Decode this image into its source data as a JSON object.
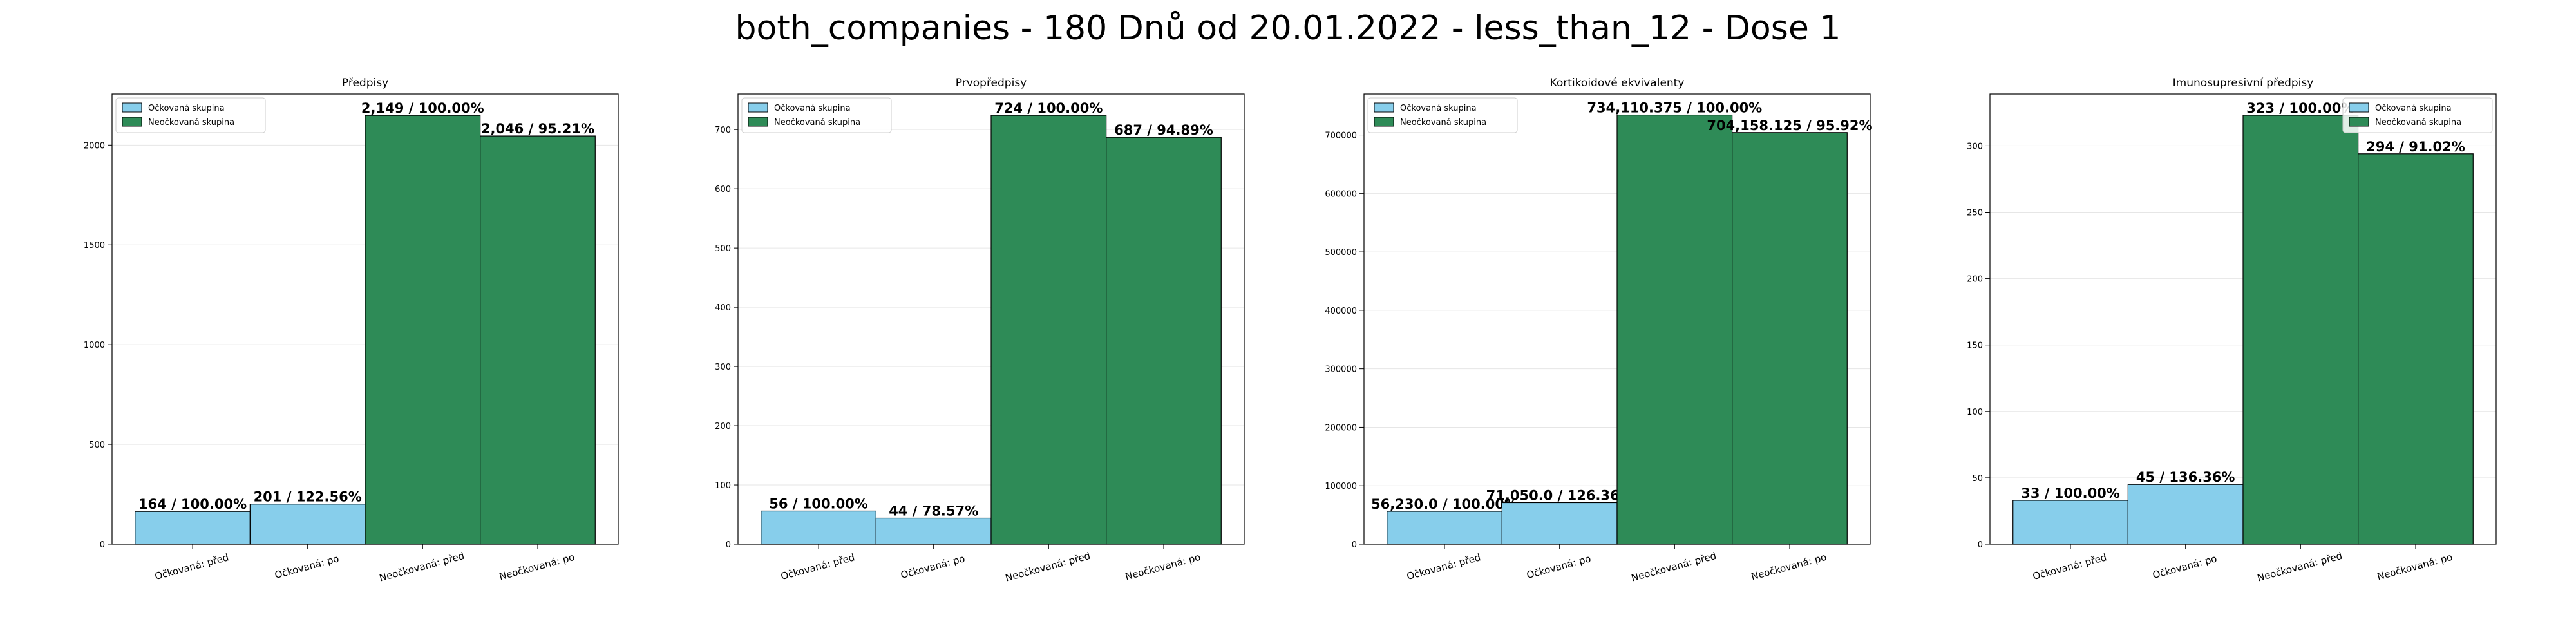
{
  "figure_title": "both_companies - 180 Dnů od 20.01.2022 - less_than_12 - Dose 1",
  "colors": {
    "vaccinated": "#87CEEB",
    "unvaccinated": "#2E8B57",
    "edge": "#000000",
    "grid": "#e6e6e6"
  },
  "chart_data": [
    {
      "type": "bar",
      "title": "Předpisy",
      "categories": [
        "Očkovaná: před",
        "Očkovaná: po",
        "Neočkovaná: před",
        "Neočkovaná: po"
      ],
      "values": [
        164,
        201,
        2149,
        2046
      ],
      "bar_labels": [
        "164 / 100.00%",
        "201 / 122.56%",
        "2,149 / 100.00%",
        "2,046 / 95.21%"
      ],
      "series_of_bar": [
        0,
        0,
        1,
        1
      ],
      "ylim": [
        0,
        2256
      ],
      "yticks": [
        0,
        500,
        1000,
        1500,
        2000
      ],
      "legend": [
        "Očkovaná skupina",
        "Neočkovaná skupina"
      ],
      "legend_position": "top-left",
      "grid": true
    },
    {
      "type": "bar",
      "title": "Prvopředpisy",
      "categories": [
        "Očkovaná: před",
        "Očkovaná: po",
        "Neočkovaná: před",
        "Neočkovaná: po"
      ],
      "values": [
        56,
        44,
        724,
        687
      ],
      "bar_labels": [
        "56 / 100.00%",
        "44 / 78.57%",
        "724 / 100.00%",
        "687 / 94.89%"
      ],
      "series_of_bar": [
        0,
        0,
        1,
        1
      ],
      "ylim": [
        0,
        760
      ],
      "yticks": [
        0,
        100,
        200,
        300,
        400,
        500,
        600,
        700
      ],
      "legend": [
        "Očkovaná skupina",
        "Neočkovaná skupina"
      ],
      "legend_position": "top-left",
      "grid": true
    },
    {
      "type": "bar",
      "title": "Kortikoidové ekvivalenty",
      "categories": [
        "Očkovaná: před",
        "Očkovaná: po",
        "Neočkovaná: před",
        "Neočkovaná: po"
      ],
      "values": [
        56230.0,
        71050.0,
        734110.375,
        704158.125
      ],
      "bar_labels": [
        "56,230.0 / 100.00%",
        "71,050.0 / 126.36%",
        "734,110.375 / 100.00%",
        "704,158.125 / 95.92%"
      ],
      "series_of_bar": [
        0,
        0,
        1,
        1
      ],
      "ylim": [
        0,
        770000
      ],
      "yticks": [
        0,
        100000,
        200000,
        300000,
        400000,
        500000,
        600000,
        700000
      ],
      "legend": [
        "Očkovaná skupina",
        "Neočkovaná skupina"
      ],
      "legend_position": "top-left",
      "grid": true
    },
    {
      "type": "bar",
      "title": "Imunosupresivní předpisy",
      "categories": [
        "Očkovaná: před",
        "Očkovaná: po",
        "Neočkovaná: před",
        "Neočkovaná: po"
      ],
      "values": [
        33,
        45,
        323,
        294
      ],
      "bar_labels": [
        "33 / 100.00%",
        "45 / 136.36%",
        "323 / 100.00%",
        "294 / 91.02%"
      ],
      "series_of_bar": [
        0,
        0,
        1,
        1
      ],
      "ylim": [
        0,
        339
      ],
      "yticks": [
        0,
        50,
        100,
        150,
        200,
        250,
        300
      ],
      "legend": [
        "Očkovaná skupina",
        "Neočkovaná skupina"
      ],
      "legend_position": "top-right",
      "grid": true
    }
  ]
}
